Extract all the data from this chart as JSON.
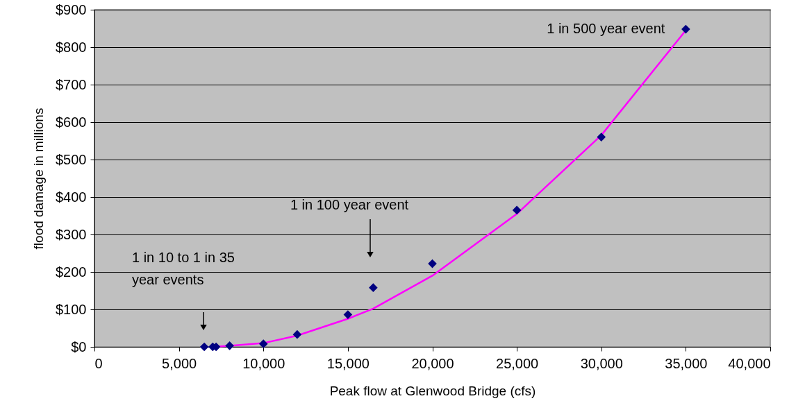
{
  "chart_data": {
    "type": "scatter",
    "xlabel": "Peak flow at Glenwood Bridge (cfs)",
    "ylabel": "flood damage in millions",
    "xlim": [
      0,
      40000
    ],
    "xticks": [
      0,
      {
        "value": 5000,
        "label": "5,000"
      },
      {
        "value": 10000,
        "label": "10,000"
      },
      {
        "value": 15000,
        "label": "15,000"
      },
      {
        "value": 20000,
        "label": "20,000"
      },
      {
        "value": 25000,
        "label": "25,000"
      },
      {
        "value": 30000,
        "label": "30,000"
      },
      {
        "value": 35000,
        "label": "35,000"
      },
      {
        "value": 40000,
        "label": "40,000"
      }
    ],
    "ylim": [
      0,
      900
    ],
    "yticks": [
      {
        "value": 0,
        "label": "$0"
      },
      {
        "value": 100,
        "label": "$100"
      },
      {
        "value": 200,
        "label": "$200"
      },
      {
        "value": 300,
        "label": "$300"
      },
      {
        "value": 400,
        "label": "$400"
      },
      {
        "value": 500,
        "label": "$500"
      },
      {
        "value": 600,
        "label": "$600"
      },
      {
        "value": 700,
        "label": "$700"
      },
      {
        "value": 800,
        "label": "$800"
      },
      {
        "value": 900,
        "label": "$900"
      }
    ],
    "grid": "y",
    "series": [
      {
        "type": "line",
        "marker": "none",
        "color": "#ff00ff",
        "x": [
          7000,
          8000,
          10000,
          12000,
          15000,
          16500,
          20000,
          25000,
          30000,
          35000
        ],
        "values": [
          0,
          3,
          10,
          30,
          75,
          102,
          190,
          355,
          565,
          845
        ]
      },
      {
        "marker": "diamond",
        "color": "#000080",
        "x": [
          6500,
          7000,
          7200,
          8000,
          10000,
          12000,
          15000,
          16500,
          20000,
          25000,
          30000,
          35000
        ],
        "values": [
          0,
          0,
          0,
          3,
          8,
          33,
          86,
          158,
          222,
          365,
          560,
          848
        ]
      }
    ],
    "annotations": [
      "1 in 10 to 1 in 35\nyear events",
      "1 in 100 year event",
      {
        "text": "1 in 500 year event",
        "x": 35000,
        "y": 848
      }
    ]
  }
}
